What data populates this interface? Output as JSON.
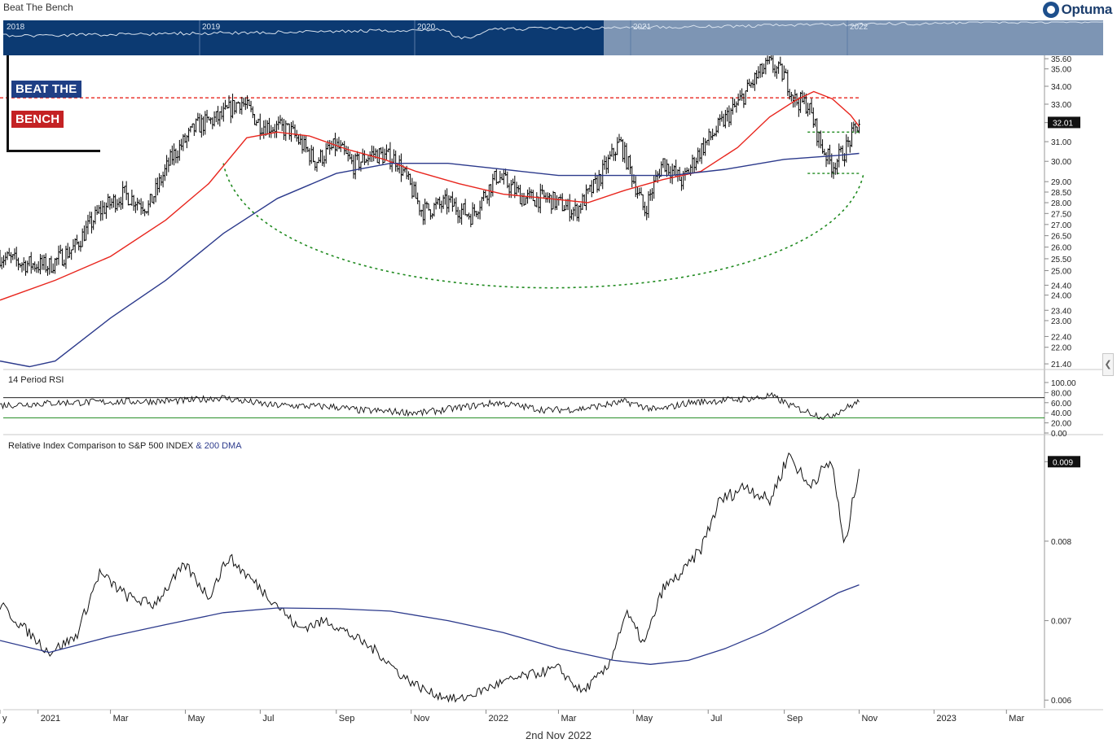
{
  "header": {
    "title": "Beat The Bench",
    "logo": "Optuma"
  },
  "overlay": {
    "line1": "BEAT THE",
    "line2": "BENCH"
  },
  "navigator": {
    "years": [
      "2018",
      "2019",
      "2020",
      "2021",
      "2022"
    ]
  },
  "footer": {
    "date": "2nd Nov 2022"
  },
  "colors": {
    "price": "#000000",
    "ma_short": "#e8261e",
    "ma_long": "#2c3a8c",
    "guides": "#1f8a1f",
    "resistance": "#e8261e",
    "navigator_bg": "#0c3a72"
  },
  "chart_data": [
    {
      "type": "line",
      "title": "Beat The Bench",
      "x_start": "2020-12",
      "x_end": "2022-11-02",
      "yaxis": {
        "ticks": [
          "35.60",
          "35.00",
          "34.00",
          "33.00",
          "32.00",
          "31.00",
          "30.00",
          "29.00",
          "28.50",
          "28.00",
          "27.50",
          "27.00",
          "26.50",
          "26.00",
          "25.50",
          "25.00",
          "24.40",
          "24.00",
          "23.40",
          "23.00",
          "22.40",
          "22.00",
          "21.40"
        ],
        "scale": "log",
        "ylim": [
          21.2,
          35.8
        ]
      },
      "last_value_label": "32.01",
      "series": [
        {
          "style": "bar",
          "x": [
            "2020-12-01",
            "2020-12-20",
            "2021-01-10",
            "2021-01-31",
            "2021-02-20",
            "2021-03-12",
            "2021-04-01",
            "2021-04-20",
            "2021-05-10",
            "2021-05-30",
            "2021-06-15",
            "2021-07-01",
            "2021-07-25",
            "2021-08-15",
            "2021-09-01",
            "2021-09-15",
            "2021-10-01",
            "2021-10-20",
            "2021-11-10",
            "2021-12-01",
            "2021-12-20",
            "2022-01-10",
            "2022-02-01",
            "2022-02-20",
            "2022-03-15",
            "2022-04-01",
            "2022-04-20",
            "2022-05-10",
            "2022-05-25",
            "2022-06-10",
            "2022-06-25",
            "2022-07-10",
            "2022-07-25",
            "2022-08-10",
            "2022-08-20",
            "2022-09-01",
            "2022-09-10",
            "2022-09-20",
            "2022-10-01",
            "2022-10-10",
            "2022-10-20",
            "2022-11-01"
          ],
          "values": [
            25.6,
            25.3,
            25.2,
            26.0,
            27.6,
            28.4,
            27.8,
            30.2,
            31.8,
            32.3,
            33.2,
            31.9,
            31.6,
            30.0,
            30.8,
            29.8,
            30.4,
            30.1,
            27.6,
            28.0,
            27.4,
            29.3,
            28.2,
            28.2,
            27.6,
            28.9,
            31.0,
            27.6,
            30.0,
            29.0,
            30.6,
            31.8,
            33.0,
            34.6,
            35.3,
            34.6,
            33.2,
            33.0,
            30.8,
            29.8,
            30.5,
            32.01
          ]
        },
        {
          "name": "MA short",
          "x": [
            "2020-12-01",
            "2021-01-15",
            "2021-03-01",
            "2021-04-15",
            "2021-05-20",
            "2021-06-20",
            "2021-07-15",
            "2021-08-10",
            "2021-09-10",
            "2021-10-10",
            "2021-11-05",
            "2021-12-10",
            "2022-01-15",
            "2022-02-20",
            "2022-03-25",
            "2022-04-25",
            "2022-05-25",
            "2022-06-25",
            "2022-07-25",
            "2022-08-20",
            "2022-09-10",
            "2022-09-25",
            "2022-10-10",
            "2022-10-25",
            "2022-11-01"
          ],
          "values": [
            23.8,
            24.6,
            25.6,
            27.2,
            28.9,
            31.2,
            31.5,
            31.3,
            30.6,
            30.1,
            29.5,
            28.9,
            28.4,
            28.2,
            28.0,
            28.6,
            29.1,
            29.5,
            30.7,
            32.3,
            33.2,
            33.7,
            33.3,
            32.4,
            31.8
          ]
        },
        {
          "name": "MA long",
          "x": [
            "2020-12-01",
            "2020-12-25",
            "2021-01-15",
            "2021-03-01",
            "2021-04-15",
            "2021-06-01",
            "2021-07-15",
            "2021-09-01",
            "2021-10-15",
            "2021-12-01",
            "2022-01-15",
            "2022-03-01",
            "2022-04-15",
            "2022-06-01",
            "2022-07-15",
            "2022-09-01",
            "2022-10-15",
            "2022-11-01"
          ],
          "values": [
            21.5,
            21.3,
            21.5,
            23.1,
            24.6,
            26.6,
            28.2,
            29.4,
            29.9,
            29.9,
            29.6,
            29.3,
            29.3,
            29.3,
            29.6,
            30.1,
            30.3,
            30.4
          ]
        }
      ],
      "annotations": [
        {
          "kind": "hline",
          "y": 33.35,
          "color": "red",
          "style": "dashed",
          "from": "2020-12-01",
          "to": "2022-11-02"
        },
        {
          "kind": "hline",
          "y": 31.5,
          "color": "green",
          "style": "dotted",
          "from": "2022-09-20",
          "to": "2022-11-02"
        },
        {
          "kind": "hline",
          "y": 29.4,
          "color": "green",
          "style": "dotted",
          "from": "2022-09-20",
          "to": "2022-11-02"
        },
        {
          "kind": "arc",
          "color": "green",
          "style": "dotted",
          "from": "2021-06-01",
          "to": "2022-11-02",
          "bottom": 25.0
        }
      ]
    },
    {
      "type": "line",
      "title": "14 Period RSI",
      "yaxis": {
        "ticks": [
          "100.00",
          "80.00",
          "60.00",
          "40.00",
          "20.00",
          "0.00"
        ],
        "ylim": [
          0,
          100
        ]
      },
      "levels": [
        70,
        30
      ],
      "series": [
        {
          "x": [
            "2020-12-01",
            "2021-01-20",
            "2021-03-10",
            "2021-05-01",
            "2021-05-30",
            "2021-07-10",
            "2021-08-30",
            "2021-09-20",
            "2021-11-10",
            "2021-12-10",
            "2022-01-10",
            "2022-02-20",
            "2022-03-20",
            "2022-04-25",
            "2022-05-20",
            "2022-06-15",
            "2022-07-10",
            "2022-08-15",
            "2022-08-20",
            "2022-09-10",
            "2022-10-05",
            "2022-10-20",
            "2022-11-01"
          ],
          "values": [
            55,
            60,
            62,
            64,
            70,
            55,
            52,
            45,
            40,
            50,
            60,
            45,
            48,
            62,
            45,
            60,
            64,
            70,
            75,
            50,
            30,
            48,
            62
          ]
        }
      ]
    },
    {
      "type": "line",
      "title": "Relative Index Comparison to S&P 500 INDEX & 200 DMA",
      "title_plain": "Relative Index Comparison to S&P 500 INDEX ",
      "title_link": "& 200 DMA",
      "yaxis": {
        "ticks": [
          "0.009",
          "0.008",
          "0.007",
          "0.006"
        ],
        "ylim": [
          0.0059,
          0.0093
        ]
      },
      "last_value_label": "0.009",
      "series": [
        {
          "name": "Relative",
          "x": [
            "2020-12-01",
            "2021-01-10",
            "2021-02-01",
            "2021-02-20",
            "2021-03-15",
            "2021-04-05",
            "2021-05-01",
            "2021-05-20",
            "2021-06-05",
            "2021-06-25",
            "2021-07-15",
            "2021-08-01",
            "2021-08-25",
            "2021-09-15",
            "2021-10-05",
            "2021-10-25",
            "2021-11-15",
            "2021-12-10",
            "2022-01-10",
            "2022-02-01",
            "2022-03-01",
            "2022-03-20",
            "2022-04-10",
            "2022-04-25",
            "2022-05-10",
            "2022-05-25",
            "2022-06-10",
            "2022-06-25",
            "2022-07-10",
            "2022-08-01",
            "2022-08-20",
            "2022-09-05",
            "2022-09-20",
            "2022-10-10",
            "2022-10-20",
            "2022-11-01"
          ],
          "values": [
            0.0072,
            0.0066,
            0.0068,
            0.0076,
            0.0073,
            0.0072,
            0.0077,
            0.0073,
            0.0078,
            0.0075,
            0.0072,
            0.0069,
            0.007,
            0.0068,
            0.0066,
            0.0063,
            0.0061,
            0.006,
            0.0062,
            0.0063,
            0.0064,
            0.0061,
            0.0064,
            0.0071,
            0.0067,
            0.0074,
            0.0076,
            0.0079,
            0.0085,
            0.0087,
            0.0085,
            0.0091,
            0.0087,
            0.009,
            0.0079,
            0.00895
          ]
        },
        {
          "name": "200 DMA",
          "x": [
            "2020-12-01",
            "2021-01-10",
            "2021-03-01",
            "2021-04-15",
            "2021-06-01",
            "2021-07-15",
            "2021-09-01",
            "2021-10-15",
            "2021-12-01",
            "2022-01-15",
            "2022-03-01",
            "2022-04-15",
            "2022-05-15",
            "2022-06-15",
            "2022-07-15",
            "2022-08-15",
            "2022-09-15",
            "2022-10-15",
            "2022-11-01"
          ],
          "values": [
            0.00675,
            0.0066,
            0.0068,
            0.00695,
            0.0071,
            0.00716,
            0.00715,
            0.00712,
            0.007,
            0.00685,
            0.00665,
            0.0065,
            0.00645,
            0.0065,
            0.00665,
            0.00685,
            0.0071,
            0.00735,
            0.00745
          ]
        }
      ]
    }
  ],
  "xaxis": {
    "ticks": [
      {
        "label": "y",
        "x": "2020-12-01"
      },
      {
        "label": "2021",
        "x": "2021-01-01"
      },
      {
        "label": "Mar",
        "x": "2021-03-01"
      },
      {
        "label": "May",
        "x": "2021-05-01"
      },
      {
        "label": "Jul",
        "x": "2021-07-01"
      },
      {
        "label": "Sep",
        "x": "2021-09-01"
      },
      {
        "label": "Nov",
        "x": "2021-11-01"
      },
      {
        "label": "2022",
        "x": "2022-01-01"
      },
      {
        "label": "Mar",
        "x": "2022-03-01"
      },
      {
        "label": "May",
        "x": "2022-05-01"
      },
      {
        "label": "Jul",
        "x": "2022-07-01"
      },
      {
        "label": "Sep",
        "x": "2022-09-01"
      },
      {
        "label": "Nov",
        "x": "2022-11-01"
      },
      {
        "label": "2023",
        "x": "2023-01-01"
      },
      {
        "label": "Mar",
        "x": "2023-03-01"
      }
    ]
  }
}
